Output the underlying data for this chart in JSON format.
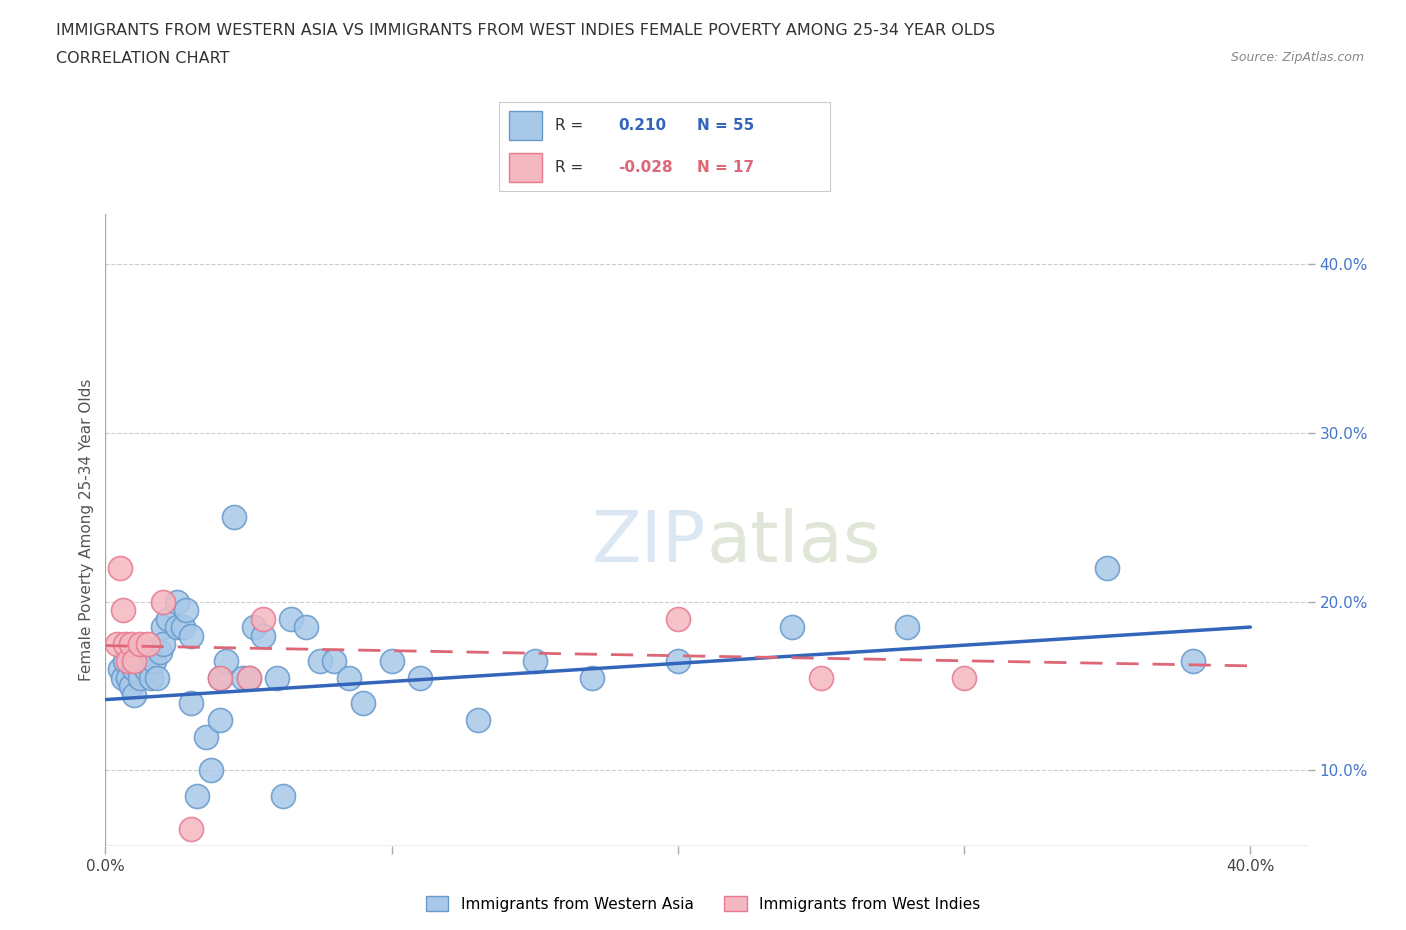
{
  "title_line1": "IMMIGRANTS FROM WESTERN ASIA VS IMMIGRANTS FROM WEST INDIES FEMALE POVERTY AMONG 25-34 YEAR OLDS",
  "title_line2": "CORRELATION CHART",
  "source_text": "Source: ZipAtlas.com",
  "ylabel": "Female Poverty Among 25-34 Year Olds",
  "xlim": [
    0.0,
    0.42
  ],
  "ylim": [
    0.055,
    0.43
  ],
  "xticks": [
    0.0,
    0.1,
    0.2,
    0.3,
    0.4
  ],
  "yticks": [
    0.1,
    0.2,
    0.3,
    0.4
  ],
  "background_color": "#ffffff",
  "blue_color": "#a8c8e8",
  "blue_edge_color": "#6699cc",
  "pink_color": "#f4b8c0",
  "pink_edge_color": "#e87890",
  "grid_color": "#cccccc",
  "watermark_text": "ZIPatlas",
  "legend_r_blue": "0.210",
  "legend_n_blue": "55",
  "legend_r_pink": "-0.028",
  "legend_n_pink": "17",
  "blue_scatter_x": [
    0.005,
    0.006,
    0.007,
    0.008,
    0.009,
    0.01,
    0.01,
    0.01,
    0.012,
    0.013,
    0.014,
    0.015,
    0.015,
    0.016,
    0.017,
    0.018,
    0.019,
    0.02,
    0.02,
    0.022,
    0.025,
    0.025,
    0.027,
    0.028,
    0.03,
    0.03,
    0.032,
    0.035,
    0.037,
    0.04,
    0.04,
    0.042,
    0.045,
    0.048,
    0.05,
    0.052,
    0.055,
    0.06,
    0.062,
    0.065,
    0.07,
    0.075,
    0.08,
    0.085,
    0.09,
    0.1,
    0.11,
    0.13,
    0.15,
    0.17,
    0.2,
    0.24,
    0.28,
    0.35,
    0.38
  ],
  "blue_scatter_y": [
    0.16,
    0.155,
    0.165,
    0.155,
    0.15,
    0.145,
    0.17,
    0.16,
    0.155,
    0.165,
    0.16,
    0.17,
    0.165,
    0.155,
    0.165,
    0.155,
    0.17,
    0.185,
    0.175,
    0.19,
    0.2,
    0.185,
    0.185,
    0.195,
    0.18,
    0.14,
    0.085,
    0.12,
    0.1,
    0.155,
    0.13,
    0.165,
    0.25,
    0.155,
    0.155,
    0.185,
    0.18,
    0.155,
    0.085,
    0.19,
    0.185,
    0.165,
    0.165,
    0.155,
    0.14,
    0.165,
    0.155,
    0.13,
    0.165,
    0.155,
    0.165,
    0.185,
    0.185,
    0.22,
    0.165
  ],
  "pink_scatter_x": [
    0.004,
    0.005,
    0.006,
    0.007,
    0.008,
    0.009,
    0.01,
    0.012,
    0.015,
    0.02,
    0.03,
    0.04,
    0.05,
    0.055,
    0.2,
    0.25,
    0.3
  ],
  "pink_scatter_y": [
    0.175,
    0.22,
    0.195,
    0.175,
    0.165,
    0.175,
    0.165,
    0.175,
    0.175,
    0.2,
    0.065,
    0.155,
    0.155,
    0.19,
    0.19,
    0.155,
    0.155
  ],
  "blue_trend_x": [
    0.0,
    0.4
  ],
  "blue_trend_y": [
    0.142,
    0.185
  ],
  "pink_trend_x": [
    0.0,
    0.4
  ],
  "pink_trend_y": [
    0.174,
    0.162
  ]
}
